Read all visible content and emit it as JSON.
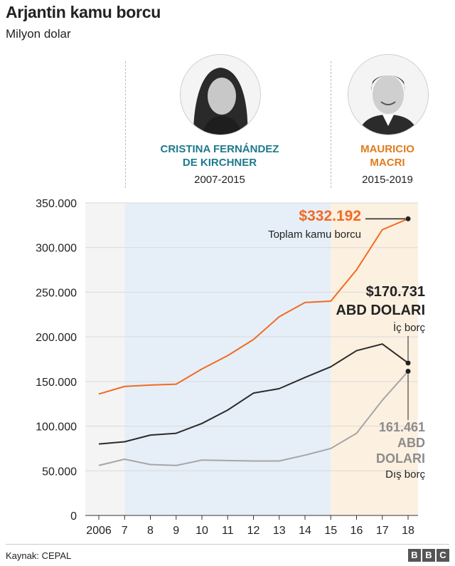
{
  "header": {
    "title": "Arjantin kamu borcu",
    "subtitle": "Milyon dolar"
  },
  "presidents": [
    {
      "name_line1": "CRISTINA FERNÁNDEZ",
      "name_line2": "DE KIRCHNER",
      "years": "2007-2015",
      "color": "#1f7a8c"
    },
    {
      "name_line1": "MAURICIO",
      "name_line2": "MACRI",
      "years": "2015-2019",
      "color": "#e07b1c"
    }
  ],
  "chart_data": {
    "type": "line",
    "categories": [
      "2006",
      "7",
      "8",
      "9",
      "10",
      "11",
      "12",
      "13",
      "14",
      "15",
      "16",
      "17",
      "18"
    ],
    "x": [
      2006,
      2007,
      2008,
      2009,
      2010,
      2011,
      2012,
      2013,
      2014,
      2015,
      2016,
      2017,
      2018
    ],
    "ylim": [
      0,
      350000
    ],
    "yticks": [
      0,
      50000,
      100000,
      150000,
      200000,
      250000,
      300000,
      350000
    ],
    "ytick_labels": [
      "0",
      "50.000",
      "100.000",
      "150.000",
      "200.000",
      "250.000",
      "300.000",
      "350.000"
    ],
    "periods": [
      {
        "label": "CRISTINA FERNÁNDEZ DE KIRCHNER",
        "from": 2007,
        "to": 2015,
        "color": "#e6eff8"
      },
      {
        "label": "MAURICIO MACRI",
        "from": 2015,
        "to": 2018.4,
        "color": "#fcf0e0"
      }
    ],
    "series": [
      {
        "name": "Toplam kamu borcu",
        "color": "#f26a21",
        "values": [
          136000,
          144500,
          146000,
          147000,
          164000,
          179000,
          197000,
          222500,
          238500,
          240000,
          275000,
          320000,
          332192
        ]
      },
      {
        "name": "İç borç",
        "color": "#2b2b2b",
        "values": [
          80000,
          82500,
          90000,
          92000,
          103000,
          118000,
          137000,
          142000,
          154500,
          166500,
          184500,
          192000,
          170731
        ]
      },
      {
        "name": "Dış borç",
        "color": "#a6a6a6",
        "values": [
          56000,
          63000,
          57000,
          56000,
          62000,
          61500,
          61000,
          61000,
          67500,
          75000,
          92000,
          129000,
          161461
        ]
      }
    ],
    "annotations": {
      "total_value": "$332.192",
      "total_label": "Toplam kamu borcu",
      "domestic_value": "$170.731",
      "domestic_unit": "ABD DOLARI",
      "domestic_label": "İç borç",
      "foreign_value": "161.461",
      "foreign_unit_1": "ABD",
      "foreign_unit_2": "DOLARI",
      "foreign_label": "Dış borç"
    }
  },
  "footer": {
    "source": "Kaynak: CEPAL",
    "logo_letters": [
      "B",
      "B",
      "C"
    ]
  }
}
